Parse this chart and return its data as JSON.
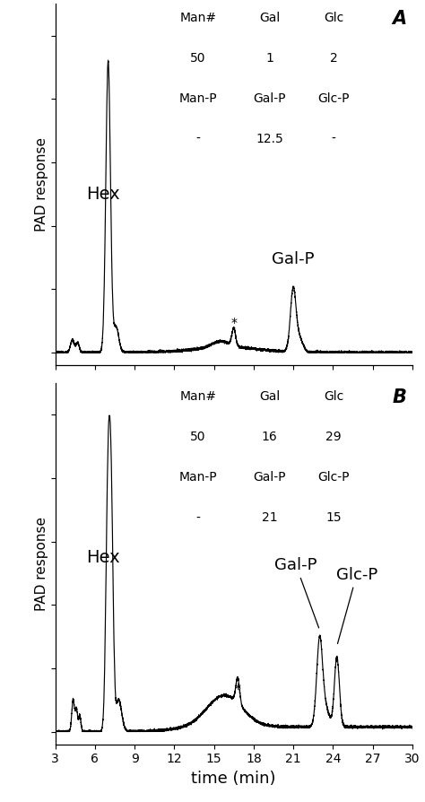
{
  "xlim": [
    3,
    30
  ],
  "xticks": [
    3,
    6,
    9,
    12,
    15,
    18,
    21,
    24,
    27,
    30
  ],
  "xlabel": "time (min)",
  "ylabel": "PAD response",
  "panel_A": {
    "label": "A",
    "table_man_col": "Man#\n50\nMan-P\n-",
    "table_gal_col": "Gal\n1\nGal-P\n12.5",
    "table_glc_col": "Glc\n2\nGlc-P\n-"
  },
  "panel_B": {
    "label": "B",
    "table_man_col": "Man#\n50\nMan-P\n-",
    "table_gal_col": "Gal\n16\nGal-P\n21",
    "table_glc_col": "Glc\n29\nGlc-P\n15"
  },
  "line_color": "#000000",
  "background_color": "#ffffff",
  "fontsize_label": 12,
  "fontsize_axis": 11,
  "fontsize_panel": 15,
  "fontsize_table": 10,
  "fontsize_hex": 14,
  "fontsize_galp": 13
}
